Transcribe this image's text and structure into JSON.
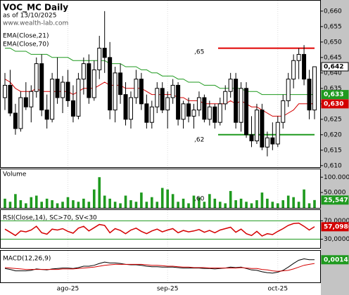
{
  "chart_data": [
    {
      "type": "candlestick",
      "title": "VOC_MC Daily",
      "subtitle": "as of 13/10/2025",
      "source": "www.wealth-lab.com",
      "ylim": [
        0.6095,
        0.6636
      ],
      "yticks": [
        {
          "value": 0.66,
          "label": "0,660"
        },
        {
          "value": 0.655,
          "label": "0,655"
        },
        {
          "value": 0.65,
          "label": "0,650"
        },
        {
          "value": 0.645,
          "label": "0,645"
        },
        {
          "value": 0.64,
          "label": "0,640"
        },
        {
          "value": 0.635,
          "label": "0,635"
        },
        {
          "value": 0.63,
          "label": "0,630"
        },
        {
          "value": 0.625,
          "label": "0,625"
        },
        {
          "value": 0.62,
          "label": "0,620"
        },
        {
          "value": 0.615,
          "label": "0,615"
        },
        {
          "value": 0.61,
          "label": "0,610"
        }
      ],
      "open": [
        0.632,
        0.636,
        0.627,
        0.622,
        0.632,
        0.629,
        0.634,
        0.643,
        0.628,
        0.625,
        0.638,
        0.632,
        0.637,
        0.631,
        0.626,
        0.638,
        0.643,
        0.632,
        0.641,
        0.648,
        0.645,
        0.628,
        0.64,
        0.633,
        0.625,
        0.632,
        0.638,
        0.63,
        0.624,
        0.629,
        0.635,
        0.628,
        0.632,
        0.636,
        0.625,
        0.63,
        0.626,
        0.628,
        0.632,
        0.625,
        0.629,
        0.624,
        0.63,
        0.634,
        0.638,
        0.624,
        0.635,
        0.62,
        0.618,
        0.628,
        0.616,
        0.619,
        0.617,
        0.624,
        0.631,
        0.638,
        0.644,
        0.646,
        0.638,
        0.628
      ],
      "high": [
        0.64,
        0.641,
        0.63,
        0.634,
        0.637,
        0.636,
        0.645,
        0.646,
        0.633,
        0.64,
        0.645,
        0.639,
        0.641,
        0.636,
        0.64,
        0.645,
        0.646,
        0.644,
        0.652,
        0.66,
        0.65,
        0.642,
        0.643,
        0.637,
        0.634,
        0.641,
        0.64,
        0.633,
        0.631,
        0.637,
        0.637,
        0.634,
        0.638,
        0.637,
        0.631,
        0.632,
        0.63,
        0.634,
        0.633,
        0.631,
        0.63,
        0.632,
        0.636,
        0.64,
        0.64,
        0.637,
        0.637,
        0.626,
        0.63,
        0.63,
        0.621,
        0.624,
        0.626,
        0.633,
        0.64,
        0.646,
        0.648,
        0.649,
        0.641,
        0.642
      ],
      "low": [
        0.628,
        0.626,
        0.62,
        0.621,
        0.628,
        0.624,
        0.632,
        0.626,
        0.622,
        0.624,
        0.63,
        0.627,
        0.629,
        0.624,
        0.625,
        0.633,
        0.63,
        0.631,
        0.638,
        0.64,
        0.625,
        0.624,
        0.63,
        0.623,
        0.622,
        0.63,
        0.628,
        0.622,
        0.622,
        0.627,
        0.627,
        0.622,
        0.63,
        0.623,
        0.622,
        0.624,
        0.622,
        0.626,
        0.624,
        0.623,
        0.622,
        0.623,
        0.628,
        0.632,
        0.622,
        0.621,
        0.619,
        0.616,
        0.617,
        0.615,
        0.613,
        0.615,
        0.616,
        0.622,
        0.629,
        0.635,
        0.638,
        0.636,
        0.625,
        0.625
      ],
      "close": [
        0.636,
        0.627,
        0.622,
        0.632,
        0.629,
        0.634,
        0.643,
        0.628,
        0.625,
        0.638,
        0.632,
        0.637,
        0.631,
        0.626,
        0.638,
        0.643,
        0.632,
        0.641,
        0.648,
        0.645,
        0.628,
        0.64,
        0.633,
        0.625,
        0.632,
        0.638,
        0.63,
        0.624,
        0.629,
        0.635,
        0.628,
        0.632,
        0.636,
        0.625,
        0.63,
        0.626,
        0.628,
        0.632,
        0.625,
        0.629,
        0.624,
        0.63,
        0.634,
        0.638,
        0.624,
        0.635,
        0.62,
        0.618,
        0.628,
        0.616,
        0.619,
        0.617,
        0.624,
        0.631,
        0.638,
        0.644,
        0.646,
        0.638,
        0.628,
        0.642
      ],
      "close_label": "0,642",
      "overlays": [
        {
          "name": "EMA(Close,21)",
          "color": "#d40000",
          "value_label": "0,630",
          "values": [
            0.638,
            0.637,
            0.635,
            0.634,
            0.634,
            0.634,
            0.635,
            0.634,
            0.634,
            0.634,
            0.634,
            0.634,
            0.634,
            0.633,
            0.634,
            0.635,
            0.635,
            0.635,
            0.636,
            0.637,
            0.636,
            0.636,
            0.636,
            0.635,
            0.635,
            0.635,
            0.635,
            0.634,
            0.633,
            0.633,
            0.633,
            0.633,
            0.633,
            0.632,
            0.632,
            0.631,
            0.631,
            0.631,
            0.63,
            0.63,
            0.63,
            0.63,
            0.63,
            0.631,
            0.63,
            0.631,
            0.63,
            0.629,
            0.629,
            0.628,
            0.627,
            0.626,
            0.626,
            0.626,
            0.627,
            0.628,
            0.63,
            0.63,
            0.63,
            0.63
          ]
        },
        {
          "name": "EMA(Close,70)",
          "color": "#1f9a1f",
          "value_label": "0,633",
          "values": [
            0.648,
            0.648,
            0.647,
            0.647,
            0.647,
            0.646,
            0.646,
            0.646,
            0.646,
            0.645,
            0.645,
            0.645,
            0.645,
            0.644,
            0.644,
            0.644,
            0.644,
            0.644,
            0.644,
            0.644,
            0.643,
            0.643,
            0.643,
            0.642,
            0.642,
            0.642,
            0.641,
            0.641,
            0.64,
            0.64,
            0.639,
            0.639,
            0.639,
            0.638,
            0.638,
            0.637,
            0.637,
            0.637,
            0.636,
            0.636,
            0.636,
            0.635,
            0.635,
            0.635,
            0.635,
            0.635,
            0.634,
            0.634,
            0.634,
            0.633,
            0.633,
            0.633,
            0.633,
            0.633,
            0.633,
            0.633,
            0.633,
            0.633,
            0.633,
            0.633
          ]
        }
      ],
      "levels": [
        {
          "value": 0.648,
          "color": "#e00000"
        },
        {
          "value": 0.62,
          "color": "#1f9a1f"
        }
      ],
      "annotations": [
        ",65",
        ",62"
      ]
    },
    {
      "type": "bar",
      "title": "Volume",
      "color": "#1f9a1f",
      "ylim": [
        0,
        128000
      ],
      "yticks": [
        {
          "value": 100000,
          "label": "100.000"
        },
        {
          "value": 50000,
          "label": "50.000"
        }
      ],
      "values": [
        30000,
        20000,
        45000,
        25000,
        15000,
        35000,
        40000,
        20000,
        30000,
        25000,
        15000,
        20000,
        35000,
        25000,
        20000,
        30000,
        20000,
        60000,
        100000,
        40000,
        30000,
        20000,
        15000,
        40000,
        25000,
        20000,
        50000,
        20000,
        35000,
        20000,
        65000,
        60000,
        45000,
        20000,
        30000,
        15000,
        40000,
        35000,
        20000,
        45000,
        30000,
        20000,
        15000,
        55000,
        25000,
        30000,
        20000,
        15000,
        25000,
        50000,
        30000,
        20000,
        15000,
        25000,
        40000,
        35000,
        20000,
        60000,
        15000,
        25547
      ],
      "value_label": "25,547",
      "annotations": [
        ",60"
      ]
    },
    {
      "type": "line",
      "title": "RSI(Close,14), SC>70, SV<30",
      "color": "#d40000",
      "level_color": "#1f9a1f",
      "ylim": [
        11,
        95
      ],
      "yticks": [
        {
          "value": 70,
          "label": "70,0000"
        },
        {
          "value": 30,
          "label": "30,0000"
        }
      ],
      "values": [
        52,
        45,
        38,
        48,
        46,
        50,
        58,
        44,
        41,
        52,
        50,
        53,
        47,
        43,
        54,
        58,
        48,
        55,
        62,
        60,
        44,
        53,
        49,
        42,
        50,
        54,
        47,
        42,
        48,
        52,
        46,
        50,
        53,
        44,
        49,
        46,
        48,
        51,
        45,
        49,
        44,
        50,
        53,
        56,
        45,
        52,
        42,
        38,
        47,
        37,
        42,
        40,
        47,
        53,
        60,
        64,
        65,
        58,
        50,
        57.0986
      ],
      "value_label": "57,0986"
    },
    {
      "type": "line",
      "title": "MACD(12,26,9)",
      "ylim": [
        -0.0035,
        0.0035
      ],
      "xlim": [
        0,
        59
      ],
      "xticks": [
        {
          "value": 12,
          "label": "ago-25"
        },
        {
          "value": 31,
          "label": "sep-25"
        },
        {
          "value": 52,
          "label": "oct-25"
        }
      ],
      "series": [
        {
          "color": "#000000",
          "value_label": "0,0014",
          "values": [
            -0.0005,
            -0.0007,
            -0.001,
            -0.001,
            -0.001,
            -0.0009,
            -0.0006,
            -0.0007,
            -0.0008,
            -0.0006,
            -0.0005,
            -0.0004,
            -0.0004,
            -0.0005,
            -0.0003,
            0.0,
            0.0,
            0.0002,
            0.0006,
            0.0009,
            0.0007,
            0.0007,
            0.0006,
            0.0004,
            0.0003,
            0.0003,
            0.0002,
            0.0,
            -0.0001,
            -0.0001,
            -0.0002,
            -0.0002,
            -0.0002,
            -0.0003,
            -0.0004,
            -0.0004,
            -0.0004,
            -0.0004,
            -0.0005,
            -0.0005,
            -0.0006,
            -0.0005,
            -0.0004,
            -0.0002,
            -0.0003,
            -0.0002,
            -0.0005,
            -0.0008,
            -0.0009,
            -0.0012,
            -0.0014,
            -0.0015,
            -0.0013,
            -0.0009,
            -0.0002,
            0.0006,
            0.0013,
            0.0016,
            0.0014,
            0.0014
          ]
        },
        {
          "color": "#d40000",
          "values": [
            -0.0003,
            -0.0004,
            -0.0005,
            -0.0006,
            -0.0007,
            -0.0007,
            -0.0007,
            -0.0007,
            -0.0007,
            -0.0007,
            -0.0007,
            -0.0006,
            -0.0006,
            -0.0006,
            -0.0005,
            -0.0004,
            -0.0003,
            -0.0002,
            0.0,
            0.0002,
            0.0003,
            0.0004,
            0.0004,
            0.0004,
            0.0004,
            0.0004,
            0.0004,
            0.0003,
            0.0002,
            0.0002,
            0.0001,
            0.0,
            0.0,
            -0.0001,
            -0.0002,
            -0.0002,
            -0.0003,
            -0.0003,
            -0.0003,
            -0.0004,
            -0.0004,
            -0.0004,
            -0.0004,
            -0.0004,
            -0.0004,
            -0.0003,
            -0.0004,
            -0.0005,
            -0.0005,
            -0.0007,
            -0.0008,
            -0.001,
            -0.0011,
            -0.001,
            -0.0009,
            -0.0006,
            -0.0002,
            0.0002,
            0.0004,
            0.0006
          ]
        }
      ]
    }
  ]
}
